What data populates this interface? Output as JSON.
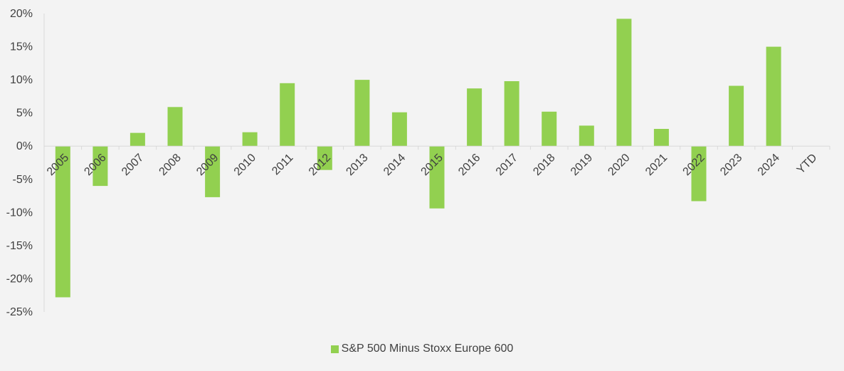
{
  "chart_data": {
    "type": "bar",
    "title": "",
    "xlabel": "",
    "ylabel": "",
    "categories": [
      "2005",
      "2006",
      "2007",
      "2008",
      "2009",
      "2010",
      "2011",
      "2012",
      "2013",
      "2014",
      "2015",
      "2016",
      "2017",
      "2018",
      "2019",
      "2020",
      "2021",
      "2022",
      "2023",
      "2024",
      "YTD"
    ],
    "series": [
      {
        "name": "S&P 500 Minus Stoxx Europe 600",
        "color": "#92d050",
        "values": [
          -22.8,
          -6.0,
          2.0,
          5.9,
          -7.7,
          2.1,
          9.5,
          -3.6,
          10.0,
          5.1,
          -9.4,
          8.7,
          9.8,
          5.2,
          3.1,
          19.2,
          2.6,
          -8.3,
          9.1,
          15.0,
          null
        ]
      }
    ],
    "ylim": [
      -25,
      20
    ],
    "yticks": [
      20,
      15,
      10,
      5,
      0,
      -5,
      -10,
      -15,
      -20,
      -25
    ],
    "ytick_labels": [
      "20%",
      "15%",
      "10%",
      "5%",
      "0%",
      "-5%",
      "-10%",
      "-15%",
      "-20%",
      "-25%"
    ],
    "grid": false,
    "legend_position": "bottom"
  }
}
